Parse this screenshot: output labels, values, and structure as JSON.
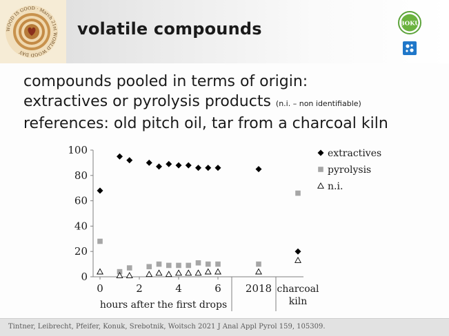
{
  "header": {
    "title": "volatile compounds",
    "logo_text": "WOOD IS GOOD · March 21st WORLD WOOD DAY",
    "boku_text": "BOKU"
  },
  "body": {
    "line1": "compounds pooled in terms of origin:",
    "line2": "extractives or pyrolysis products",
    "line2_note": "(n.i. – non identifiable)",
    "line3": "references: old pitch oil, tar from a charcoal kiln"
  },
  "footer": {
    "citation": "Tintner, Leibrecht, Pfeifer, Konuk, Srebotnik, Woitsch 2021 J Anal Appl Pyrol 159, 105309."
  },
  "chart_data": {
    "type": "scatter",
    "xlabel": "hours after the first drops",
    "ylim": [
      0,
      100
    ],
    "yticks": [
      0,
      20,
      40,
      60,
      80,
      100
    ],
    "xlim": [
      -0.5,
      7
    ],
    "xticks": [
      0,
      2,
      4,
      6
    ],
    "reference_labels": [
      "2018",
      "charcoal",
      "kiln"
    ],
    "legend_position": "right",
    "colors": {
      "extractives": "#000000",
      "pyrolysis": "#a6a6a6",
      "ni": "#000000"
    },
    "series": [
      {
        "name": "extractives",
        "marker": "diamond",
        "hours": [
          0,
          1,
          1.5,
          2.5,
          3,
          3.5,
          4,
          4.5,
          5,
          5.5,
          6
        ],
        "values": [
          68,
          95,
          92,
          90,
          87,
          89,
          88,
          88,
          86,
          86,
          86
        ],
        "ref_2018": 85,
        "ref_kiln": 20
      },
      {
        "name": "pyrolysis",
        "marker": "square",
        "hours": [
          0,
          1,
          1.5,
          2.5,
          3,
          3.5,
          4,
          4.5,
          5,
          5.5,
          6
        ],
        "values": [
          28,
          4,
          7,
          8,
          10,
          9,
          9,
          9,
          11,
          10,
          10
        ],
        "ref_2018": 10,
        "ref_kiln": 66
      },
      {
        "name": "n.i.",
        "marker": "triangle",
        "hours": [
          0,
          1,
          1.5,
          2.5,
          3,
          3.5,
          4,
          4.5,
          5,
          5.5,
          6
        ],
        "values": [
          4,
          1,
          1,
          2,
          3,
          2,
          3,
          3,
          3,
          4,
          4
        ],
        "ref_2018": 4,
        "ref_kiln": 13
      }
    ]
  }
}
